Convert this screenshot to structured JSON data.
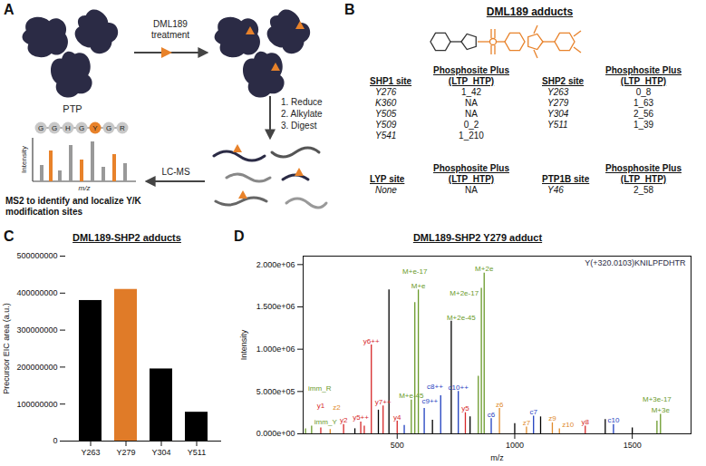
{
  "panel_a": {
    "letter": "A",
    "ptp_label": "PTP",
    "treatment": [
      "DML189",
      "treatment"
    ],
    "steps": [
      "1. Reduce",
      "2. Alkylate",
      "3. Digest"
    ],
    "lcms": "LC-MS",
    "peptide": [
      "G",
      "G",
      "H",
      "G",
      "Y",
      "G",
      "R"
    ],
    "modified_residue": "Y",
    "spectrum_y_label": "Intensity",
    "spectrum_x_label": "m/z",
    "caption": "MS2 to identify and localize Y/K modification sites"
  },
  "panel_b": {
    "letter": "B",
    "title": "DML189 adducts",
    "tables": [
      {
        "site_header": "SHP1 site",
        "value_header": [
          "Phosphosite Plus",
          "(LTP_HTP)"
        ],
        "rows": [
          [
            "Y276",
            "1_42"
          ],
          [
            "K360",
            "NA"
          ],
          [
            "Y505",
            "NA"
          ],
          [
            "Y509",
            "0_2"
          ],
          [
            "Y541",
            "1_210"
          ]
        ]
      },
      {
        "site_header": "SHP2 site",
        "value_header": [
          "Phosphosite Plus",
          "(LTP_HTP)"
        ],
        "rows": [
          [
            "Y263",
            "0_8"
          ],
          [
            "Y279",
            "1_63"
          ],
          [
            "Y304",
            "2_56"
          ],
          [
            "Y511",
            "1_39"
          ]
        ]
      },
      {
        "site_header": "LYP site",
        "value_header": [
          "Phosphosite Plus",
          "(LTP_HTP)"
        ],
        "rows": [
          [
            "None",
            "NA"
          ]
        ]
      },
      {
        "site_header": "PTP1B site",
        "value_header": [
          "Phosphosite Plus",
          "(LTP_HTP)"
        ],
        "rows": [
          [
            "Y46",
            "2_58"
          ]
        ]
      }
    ]
  },
  "chart_data": [
    {
      "type": "bar",
      "letter": "C",
      "title": "DML189-SHP2 adducts",
      "ylabel": "Precursor EIC area (a.u.)",
      "categories": [
        "Y263",
        "Y279",
        "Y304",
        "Y511"
      ],
      "values": [
        380000000,
        410000000,
        195000000,
        78000000
      ],
      "colors": [
        "#000000",
        "#e07b28",
        "#000000",
        "#000000"
      ],
      "ylim": [
        0,
        500000000
      ],
      "yticks": [
        0,
        100000000,
        200000000,
        300000000,
        400000000,
        500000000
      ]
    },
    {
      "type": "stick",
      "letter": "D",
      "title": "DML189-SHP2 Y279 adduct",
      "xlabel": "m/z",
      "ylabel": "Intensity",
      "sequence": "Y(+320.0103)KNILPFDHTR",
      "x": [
        110,
        136,
        175,
        215,
        272,
        320,
        345,
        360,
        390,
        420,
        440,
        465,
        500,
        530,
        560,
        575,
        590,
        615,
        650,
        685,
        730,
        760,
        790,
        810,
        845,
        858,
        870,
        900,
        935,
        1000,
        1050,
        1080,
        1110,
        1160,
        1190,
        1300,
        1385,
        1420,
        1500,
        1605,
        1620
      ],
      "values": [
        60000,
        90000,
        70000,
        50000,
        110000,
        60000,
        140000,
        90000,
        1050000,
        280000,
        330000,
        1700000,
        150000,
        100000,
        400000,
        1550000,
        1700000,
        300000,
        160000,
        450000,
        1330000,
        500000,
        250000,
        200000,
        680000,
        1720000,
        1900000,
        180000,
        300000,
        120000,
        80000,
        210000,
        200000,
        130000,
        60000,
        90000,
        170000,
        110000,
        70000,
        150000,
        230000
      ],
      "colors": [
        "#6a9a2a",
        "#6a9a2a",
        "#d62728",
        "#e08a2a",
        "#d62728",
        "#000000",
        "#d62728",
        "#d62728",
        "#d62728",
        "#000000",
        "#d62728",
        "#000000",
        "#d62728",
        "#1f3fbf",
        "#6a9a2a",
        "#6a9a2a",
        "#6a9a2a",
        "#1f3fbf",
        "#000000",
        "#1f3fbf",
        "#000000",
        "#1f3fbf",
        "#d62728",
        "#000000",
        "#6a9a2a",
        "#6a9a2a",
        "#6a9a2a",
        "#1f3fbf",
        "#e08a2a",
        "#000000",
        "#e08a2a",
        "#1f3fbf",
        "#000000",
        "#e08a2a",
        "#e08a2a",
        "#d62728",
        "#000000",
        "#1f3fbf",
        "#000000",
        "#6a9a2a",
        "#6a9a2a"
      ],
      "peak_labels": [
        "imm_R",
        "imm_Y",
        "y1",
        "z2",
        "y2",
        null,
        "y5++",
        null,
        "y6++",
        null,
        "y7++",
        null,
        "y4",
        null,
        "M+e-45",
        "M+e-17",
        "M+e",
        "c8++",
        null,
        "c9++",
        null,
        "c10++",
        "y5",
        null,
        "M+2e-45",
        "M+2e-17",
        "M+2e",
        "c6",
        "z6",
        null,
        "z7",
        "c7",
        null,
        "z9",
        "z10",
        "y8",
        null,
        "c10",
        null,
        "M+3e-17",
        "M+3e"
      ],
      "xlim": [
        100,
        1750
      ],
      "xticks": [
        500,
        1000,
        1500
      ],
      "ylim": [
        0,
        2100000
      ],
      "yticks": [
        {
          "value": 0,
          "label": "0.000e+00"
        },
        {
          "value": 500000,
          "label": "5.000e+05"
        },
        {
          "value": 1000000,
          "label": "1.000e+06"
        },
        {
          "value": 1500000,
          "label": "1.500e+06"
        },
        {
          "value": 2000000,
          "label": "2.000e+06"
        }
      ]
    }
  ]
}
